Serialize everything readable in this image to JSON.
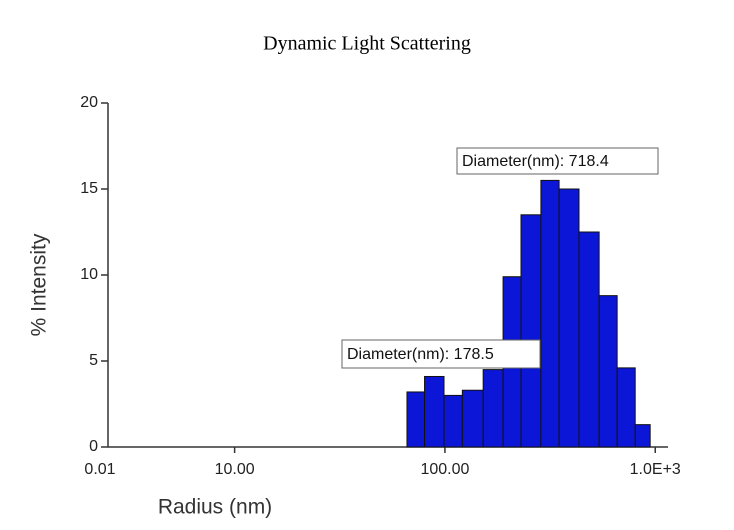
{
  "chart_data": {
    "type": "histogram",
    "title": "Dynamic Light Scattering",
    "x_label": "Radius (nm)",
    "y_label": "% Intensity",
    "x_scale": "log",
    "x_axis_origin_label": "0.01",
    "bins": [
      66,
      80,
      99,
      121,
      152,
      189,
      230,
      286,
      349,
      434,
      541,
      659,
      803,
      946
    ],
    "values": [
      3.2,
      4.1,
      3.0,
      3.3,
      4.5,
      9.9,
      13.5,
      15.5,
      15.0,
      12.5,
      8.8,
      4.6,
      1.3
    ],
    "color": "#0c16d6",
    "xlim": [
      2.5,
      1150
    ],
    "xticks": [
      {
        "value": 10,
        "label": "10.00"
      },
      {
        "value": 100,
        "label": "100.00"
      },
      {
        "value": 1000,
        "label": "1.0E+3"
      }
    ],
    "ylim": [
      0,
      20
    ],
    "yticks": [
      0,
      5,
      10,
      15,
      20
    ],
    "annotations": [
      "Diameter(nm): 718.4",
      "Diameter(nm): 178.5"
    ]
  }
}
